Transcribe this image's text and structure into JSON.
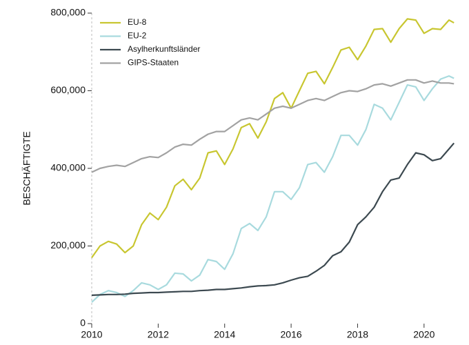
{
  "chart_data": {
    "type": "line",
    "y_label": "BESCHÄFTIGTE",
    "x": [
      2010,
      2010.25,
      2010.5,
      2010.75,
      2011,
      2011.25,
      2011.5,
      2011.75,
      2012,
      2012.25,
      2012.5,
      2012.75,
      2013,
      2013.25,
      2013.5,
      2013.75,
      2014,
      2014.25,
      2014.5,
      2014.75,
      2015,
      2015.25,
      2015.5,
      2015.75,
      2016,
      2016.25,
      2016.5,
      2016.75,
      2017,
      2017.25,
      2017.5,
      2017.75,
      2018,
      2018.25,
      2018.5,
      2018.75,
      2019,
      2019.25,
      2019.5,
      2019.75,
      2020,
      2020.25,
      2020.5,
      2020.75,
      2020.9
    ],
    "series": [
      {
        "name": "EU-8",
        "color": "#c8c630",
        "values": [
          170000,
          200000,
          212000,
          205000,
          183000,
          200000,
          255000,
          285000,
          268000,
          300000,
          355000,
          372000,
          345000,
          375000,
          440000,
          445000,
          410000,
          450000,
          505000,
          515000,
          478000,
          520000,
          580000,
          595000,
          555000,
          600000,
          645000,
          650000,
          618000,
          660000,
          705000,
          712000,
          680000,
          715000,
          758000,
          760000,
          725000,
          760000,
          785000,
          782000,
          748000,
          760000,
          758000,
          782000,
          775000
        ]
      },
      {
        "name": "EU-2",
        "color": "#a8dade",
        "values": [
          55000,
          75000,
          85000,
          80000,
          70000,
          85000,
          105000,
          100000,
          88000,
          100000,
          130000,
          128000,
          110000,
          125000,
          165000,
          160000,
          140000,
          180000,
          245000,
          258000,
          240000,
          275000,
          340000,
          340000,
          320000,
          350000,
          410000,
          415000,
          390000,
          430000,
          485000,
          485000,
          460000,
          500000,
          565000,
          555000,
          525000,
          570000,
          615000,
          610000,
          575000,
          605000,
          630000,
          638000,
          632000
        ]
      },
      {
        "name": "Asylherkunftsländer",
        "color": "#3c4950",
        "values": [
          73000,
          74000,
          75000,
          75000,
          76000,
          78000,
          79000,
          80000,
          80000,
          81000,
          82000,
          83000,
          83000,
          85000,
          86000,
          88000,
          88000,
          90000,
          92000,
          95000,
          97000,
          98000,
          100000,
          105000,
          112000,
          118000,
          122000,
          135000,
          150000,
          175000,
          185000,
          210000,
          255000,
          275000,
          300000,
          340000,
          370000,
          375000,
          410000,
          440000,
          435000,
          420000,
          425000,
          450000,
          465000
        ]
      },
      {
        "name": "GIPS-Staaten",
        "color": "#a2a2a2",
        "values": [
          390000,
          400000,
          405000,
          408000,
          405000,
          415000,
          425000,
          430000,
          428000,
          440000,
          455000,
          462000,
          460000,
          475000,
          488000,
          495000,
          495000,
          510000,
          525000,
          530000,
          525000,
          540000,
          555000,
          560000,
          555000,
          565000,
          575000,
          580000,
          575000,
          585000,
          595000,
          600000,
          598000,
          605000,
          615000,
          618000,
          612000,
          620000,
          628000,
          628000,
          620000,
          625000,
          620000,
          620000,
          618000
        ]
      }
    ],
    "xlim": [
      2010,
      2021
    ],
    "xticks": [
      2010,
      2012,
      2014,
      2016,
      2018,
      2020
    ],
    "ylim": [
      0,
      800000
    ],
    "yticks": [
      0,
      {
        "value": 200000,
        "label": "200,000"
      },
      {
        "value": 400000,
        "label": "400,000"
      },
      {
        "value": 600000,
        "label": "600,000"
      },
      {
        "value": 800000,
        "label": "800,000"
      }
    ],
    "legend": "upper left",
    "grid": false
  }
}
